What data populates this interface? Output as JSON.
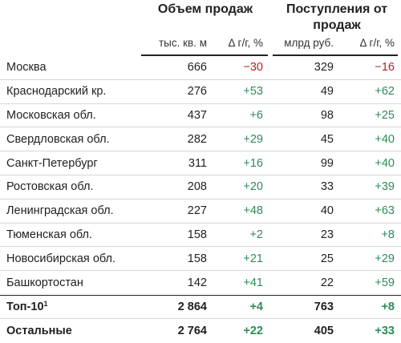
{
  "headers": {
    "group1": "Объем продаж",
    "group2": "Поступления от продаж",
    "sub1": "тыс. кв. м",
    "sub2": "Δ г/г, %",
    "sub3": "млрд руб.",
    "sub4": "Δ г/г, %"
  },
  "rows": [
    {
      "name": "Москва",
      "v1": "666",
      "d1": "−30",
      "v2": "329",
      "d2": "−16"
    },
    {
      "name": "Краснодарский кр.",
      "v1": "276",
      "d1": "+53",
      "v2": "49",
      "d2": "+62"
    },
    {
      "name": "Московская обл.",
      "v1": "437",
      "d1": "+6",
      "v2": "98",
      "d2": "+25"
    },
    {
      "name": "Свердловская обл.",
      "v1": "282",
      "d1": "+29",
      "v2": "45",
      "d2": "+40"
    },
    {
      "name": "Санкт-Петербург",
      "v1": "311",
      "d1": "+16",
      "v2": "99",
      "d2": "+40"
    },
    {
      "name": "Ростовская обл.",
      "v1": "208",
      "d1": "+20",
      "v2": "33",
      "d2": "+39"
    },
    {
      "name": "Ленинградская обл.",
      "v1": "227",
      "d1": "+48",
      "v2": "40",
      "d2": "+63"
    },
    {
      "name": "Тюменская обл.",
      "v1": "158",
      "d1": "+2",
      "v2": "23",
      "d2": "+8"
    },
    {
      "name": "Новосибирская обл.",
      "v1": "158",
      "d1": "+21",
      "v2": "25",
      "d2": "+29"
    },
    {
      "name": "Башкортостан",
      "v1": "142",
      "d1": "+41",
      "v2": "22",
      "d2": "+59"
    }
  ],
  "totals": [
    {
      "name": "Топ-10",
      "sup": "1",
      "v1": "2 864",
      "d1": "+4",
      "v2": "763",
      "d2": "+8"
    },
    {
      "name": "Остальные",
      "v1": "2 764",
      "d1": "+22",
      "v2": "405",
      "d2": "+33"
    }
  ],
  "colors": {
    "positive": "#2e8b57",
    "negative": "#b22222"
  }
}
